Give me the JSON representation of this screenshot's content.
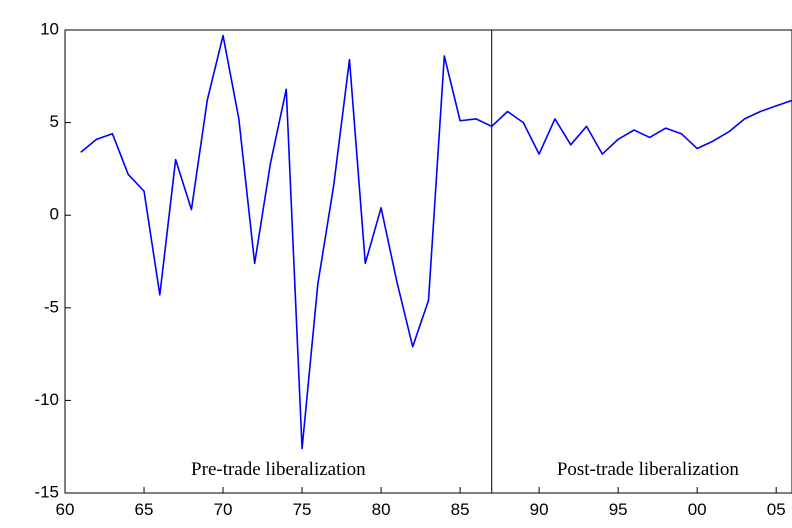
{
  "chart_data": {
    "type": "line",
    "x": [
      1961,
      1962,
      1963,
      1964,
      1965,
      1966,
      1967,
      1968,
      1969,
      1970,
      1971,
      1972,
      1973,
      1974,
      1975,
      1976,
      1977,
      1978,
      1979,
      1980,
      1981,
      1982,
      1983,
      1984,
      1985,
      1986,
      1987,
      1988,
      1989,
      1990,
      1991,
      1992,
      1993,
      1994,
      1995,
      1996,
      1997,
      1998,
      1999,
      2000,
      2001,
      2002,
      2003,
      2004,
      2005,
      2006
    ],
    "series": [
      {
        "color": "#0000ff",
        "values": [
          3.4,
          4.1,
          4.4,
          2.2,
          1.3,
          -4.3,
          3.0,
          0.3,
          6.2,
          9.7,
          5.2,
          -2.6,
          2.8,
          6.8,
          -12.6,
          -3.7,
          1.6,
          8.4,
          -2.6,
          0.4,
          -3.6,
          -7.1,
          -4.6,
          8.6,
          5.1,
          5.2,
          4.8,
          5.6,
          5.0,
          3.3,
          5.2,
          3.8,
          4.8,
          3.3,
          4.1,
          4.6,
          4.2,
          4.7,
          4.4,
          3.6,
          4.0,
          4.5,
          5.2,
          5.6,
          5.9,
          6.2
        ]
      }
    ],
    "xlim": [
      1960,
      2006
    ],
    "xticks": [
      {
        "value": 1960,
        "label": "60"
      },
      {
        "value": 1965,
        "label": "65"
      },
      {
        "value": 1970,
        "label": "70"
      },
      {
        "value": 1975,
        "label": "75"
      },
      {
        "value": 1980,
        "label": "80"
      },
      {
        "value": 1985,
        "label": "85"
      },
      {
        "value": 1990,
        "label": "90"
      },
      {
        "value": 1995,
        "label": "95"
      },
      {
        "value": 2000,
        "label": "00"
      },
      {
        "value": 2005,
        "label": "05"
      }
    ],
    "ylim": [
      -15,
      10
    ],
    "yticks": [
      10,
      5,
      0,
      -5,
      -10,
      -15
    ],
    "divider_x": 1987,
    "annotations": [
      "Pre-trade liberalization",
      "Post-trade liberalization"
    ]
  }
}
